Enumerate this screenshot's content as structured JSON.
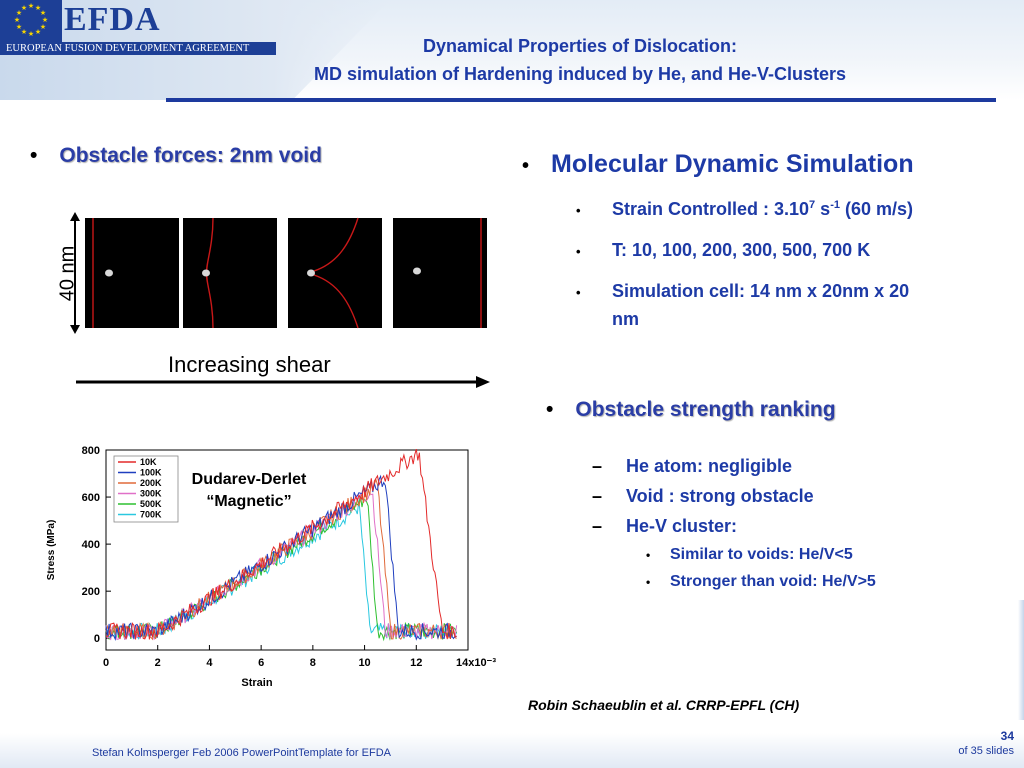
{
  "header": {
    "logo_title": "EFDA",
    "logo_subtitle": "EUROPEAN FUSION DEVELOPMENT AGREEMENT",
    "title_line1": "Dynamical Properties of Dislocation:",
    "title_line2": "MD simulation of Hardening induced by He, and He-V-Clusters"
  },
  "left": {
    "bullet": "•",
    "heading": "Obstacle forces: 2nm void",
    "length_label": "40 nm",
    "shear_label": "Increasing shear",
    "graph_annotation_line1": "Dudarev-Derlet",
    "graph_annotation_line2": "“Magnetic”"
  },
  "right": {
    "bullet": "•",
    "heading": "Molecular Dynamic Simulation",
    "strain_prefix": "Strain Controlled : 3.10",
    "strain_exp": "7",
    "strain_unit": " s",
    "strain_unit_exp": "-1",
    "strain_suffix": " (60 m/s)",
    "temps": "T: 10, 100, 200, 300, 500, 700 K",
    "cell_line1": "Simulation cell: 14 nm x 20nm x 20",
    "cell_line2": "nm",
    "strength_heading": "Obstacle strength ranking",
    "dash": "–",
    "he_atom": "He atom: negligible",
    "void": "Void : strong obstacle",
    "hev": "He-V cluster:",
    "similar": "Similar to voids: He/V<5",
    "stronger": "Stronger than void: He/V>5"
  },
  "citation": "Robin Schaeublin et al. CRRP-EPFL (CH)",
  "footer": {
    "text": "Stefan Kolmsperger Feb 2006 PowerPointTemplate for EFDA",
    "slide_number": "34",
    "slide_total": "of  35 slides"
  },
  "chart_data": {
    "type": "line",
    "title": "",
    "xlabel": "Strain",
    "ylabel": "Stress (MPa)",
    "xlim": [
      0,
      14
    ],
    "ylim": [
      -50,
      800
    ],
    "x_tick_labels": [
      "0",
      "2",
      "4",
      "6",
      "8",
      "10",
      "12",
      "14x10⁻³"
    ],
    "x_ticks": [
      0,
      2,
      4,
      6,
      8,
      10,
      12,
      14
    ],
    "y_ticks": [
      0,
      200,
      400,
      600,
      800
    ],
    "legend_position": "top-left",
    "grid": false,
    "series": [
      {
        "name": "10K",
        "color": "#e32a2a",
        "peak_x": 12.1,
        "peak_y": 790,
        "drop_end_x": 13.0
      },
      {
        "name": "100K",
        "color": "#1f3fbf",
        "peak_x": 10.8,
        "peak_y": 680,
        "drop_end_x": 11.3
      },
      {
        "name": "200K",
        "color": "#e06a3a",
        "peak_x": 10.5,
        "peak_y": 650,
        "drop_end_x": 11.0
      },
      {
        "name": "300K",
        "color": "#e070c8",
        "peak_x": 10.3,
        "peak_y": 630,
        "drop_end_x": 10.8
      },
      {
        "name": "500K",
        "color": "#2ec030",
        "peak_x": 10.1,
        "peak_y": 600,
        "drop_end_x": 10.5
      },
      {
        "name": "700K",
        "color": "#2ac8e0",
        "peak_x": 9.8,
        "peak_y": 560,
        "drop_end_x": 10.2
      }
    ]
  }
}
